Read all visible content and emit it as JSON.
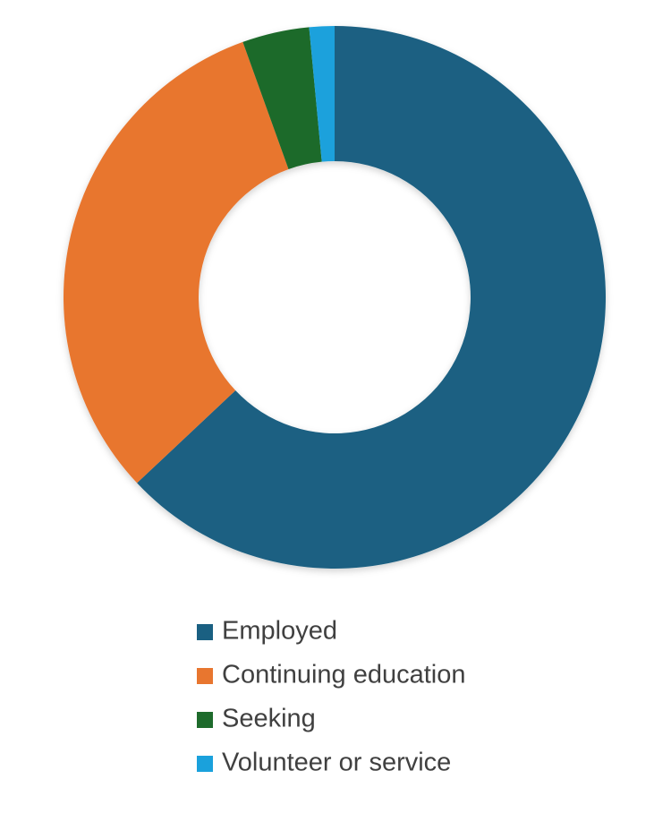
{
  "chart_data": {
    "type": "donut",
    "categories": [
      "Employed",
      "Continuing education",
      "Seeking",
      "Volunteer or service"
    ],
    "values": [
      63,
      31.5,
      4,
      1.5
    ],
    "colors": [
      "#1a6082",
      "#e8762f",
      "#1e6b2c",
      "#1aa1dc"
    ],
    "legend": "bottom"
  }
}
